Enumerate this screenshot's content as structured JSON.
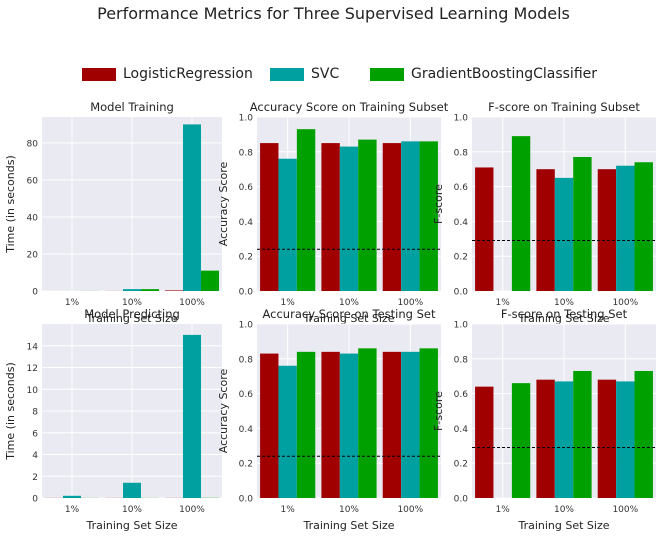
{
  "figure": {
    "title": "Performance Metrics for Three Supervised Learning Models"
  },
  "legend": {
    "entries": [
      "LogisticRegression",
      "SVC",
      "GradientBoostingClassifier"
    ],
    "colors": [
      "#a00000",
      "#00a0a0",
      "#00a000"
    ]
  },
  "chart_data": [
    {
      "type": "bar",
      "title": "Model Training",
      "xlabel": "Training Set Size",
      "ylabel": "Time (in seconds)",
      "categories": [
        "1%",
        "10%",
        "100%"
      ],
      "ylim": [
        0,
        94
      ],
      "yticks": [
        0,
        20,
        40,
        60,
        80
      ],
      "series": [
        {
          "name": "LogisticRegression",
          "values": [
            0.01,
            0.05,
            0.3
          ]
        },
        {
          "name": "SVC",
          "values": [
            0.02,
            1.0,
            90.0
          ]
        },
        {
          "name": "GradientBoostingClassifier",
          "values": [
            0.05,
            1.0,
            11.0
          ]
        }
      ]
    },
    {
      "type": "bar",
      "title": "Accuracy Score on Training Subset",
      "xlabel": "Training Set Size",
      "ylabel": "Accuracy Score",
      "categories": [
        "1%",
        "10%",
        "100%"
      ],
      "ylim": [
        0,
        1
      ],
      "yticks": [
        0.0,
        0.2,
        0.4,
        0.6,
        0.8,
        1.0
      ],
      "baseline": 0.24,
      "series": [
        {
          "name": "LogisticRegression",
          "values": [
            0.85,
            0.85,
            0.85
          ]
        },
        {
          "name": "SVC",
          "values": [
            0.76,
            0.83,
            0.86
          ]
        },
        {
          "name": "GradientBoostingClassifier",
          "values": [
            0.93,
            0.87,
            0.86
          ]
        }
      ]
    },
    {
      "type": "bar",
      "title": "F-score on Training Subset",
      "xlabel": "Training Set Size",
      "ylabel": "F-score",
      "categories": [
        "1%",
        "10%",
        "100%"
      ],
      "ylim": [
        0,
        1
      ],
      "yticks": [
        0.0,
        0.2,
        0.4,
        0.6,
        0.8,
        1.0
      ],
      "baseline": 0.29,
      "series": [
        {
          "name": "LogisticRegression",
          "values": [
            0.71,
            0.7,
            0.7
          ]
        },
        {
          "name": "SVC",
          "values": [
            0.0,
            0.65,
            0.72
          ]
        },
        {
          "name": "GradientBoostingClassifier",
          "values": [
            0.89,
            0.77,
            0.74
          ]
        }
      ]
    },
    {
      "type": "bar",
      "title": "Model Predicting",
      "xlabel": "Training Set Size",
      "ylabel": "Time (in seconds)",
      "categories": [
        "1%",
        "10%",
        "100%"
      ],
      "ylim": [
        0,
        16
      ],
      "yticks": [
        0,
        2,
        4,
        6,
        8,
        10,
        12,
        14
      ],
      "series": [
        {
          "name": "LogisticRegression",
          "values": [
            0.01,
            0.01,
            0.01
          ]
        },
        {
          "name": "SVC",
          "values": [
            0.2,
            1.4,
            15.0
          ]
        },
        {
          "name": "GradientBoostingClassifier",
          "values": [
            0.01,
            0.01,
            0.02
          ]
        }
      ]
    },
    {
      "type": "bar",
      "title": "Accuracy Score on Testing Set",
      "xlabel": "Training Set Size",
      "ylabel": "Accuracy Score",
      "categories": [
        "1%",
        "10%",
        "100%"
      ],
      "ylim": [
        0,
        1
      ],
      "yticks": [
        0.0,
        0.2,
        0.4,
        0.6,
        0.8,
        1.0
      ],
      "baseline": 0.24,
      "series": [
        {
          "name": "LogisticRegression",
          "values": [
            0.83,
            0.84,
            0.84
          ]
        },
        {
          "name": "SVC",
          "values": [
            0.76,
            0.83,
            0.84
          ]
        },
        {
          "name": "GradientBoostingClassifier",
          "values": [
            0.84,
            0.86,
            0.86
          ]
        }
      ]
    },
    {
      "type": "bar",
      "title": "F-score on Testing Set",
      "xlabel": "Training Set Size",
      "ylabel": "F-score",
      "categories": [
        "1%",
        "10%",
        "100%"
      ],
      "ylim": [
        0,
        1
      ],
      "yticks": [
        0.0,
        0.2,
        0.4,
        0.6,
        0.8,
        1.0
      ],
      "baseline": 0.29,
      "series": [
        {
          "name": "LogisticRegression",
          "values": [
            0.64,
            0.68,
            0.68
          ]
        },
        {
          "name": "SVC",
          "values": [
            0.0,
            0.67,
            0.67
          ]
        },
        {
          "name": "GradientBoostingClassifier",
          "values": [
            0.66,
            0.73,
            0.73
          ]
        }
      ]
    }
  ]
}
